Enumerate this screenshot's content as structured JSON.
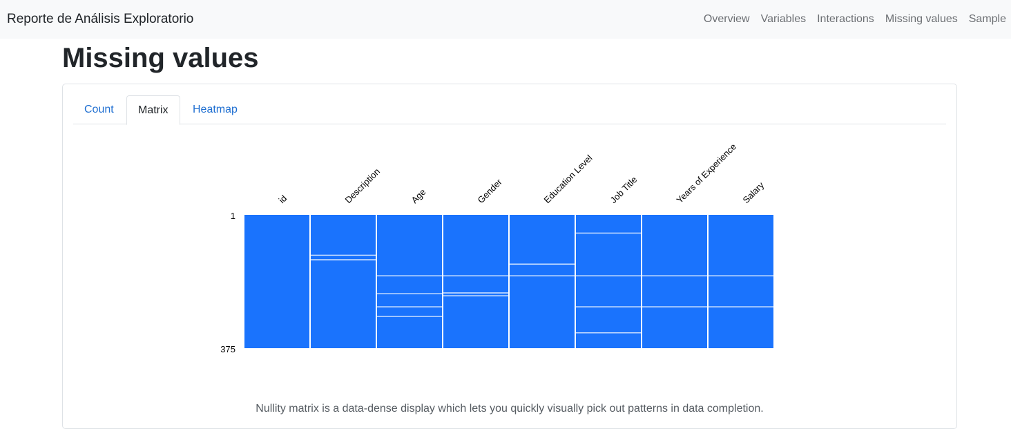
{
  "navbar": {
    "brand": "Reporte de Análisis Exploratorio",
    "links": [
      "Overview",
      "Variables",
      "Interactions",
      "Missing values",
      "Sample"
    ]
  },
  "page_title": "Missing values",
  "tabs": [
    {
      "label": "Count",
      "active": false
    },
    {
      "label": "Matrix",
      "active": true
    },
    {
      "label": "Heatmap",
      "active": false
    }
  ],
  "caption": "Nullity matrix is a data-dense display which lets you quickly visually pick out patterns in data completion.",
  "colors": {
    "accent": "#1f6fd1",
    "matrix_fill": "#1a73fd"
  },
  "chart_data": {
    "type": "heatmap",
    "title": "",
    "columns": [
      "id",
      "Description",
      "Age",
      "Gender",
      "Education Level",
      "Job Title",
      "Years of Experience",
      "Salary"
    ],
    "row_labels": [
      "1",
      "375"
    ],
    "rows": 375,
    "missing_rows": [
      [],
      [
        114,
        127
      ],
      [
        172,
        222,
        259,
        286
      ],
      [
        172,
        220,
        228
      ],
      [
        139,
        172
      ],
      [
        52,
        172,
        259,
        332
      ],
      [
        172,
        259
      ],
      [
        172,
        259
      ]
    ]
  }
}
